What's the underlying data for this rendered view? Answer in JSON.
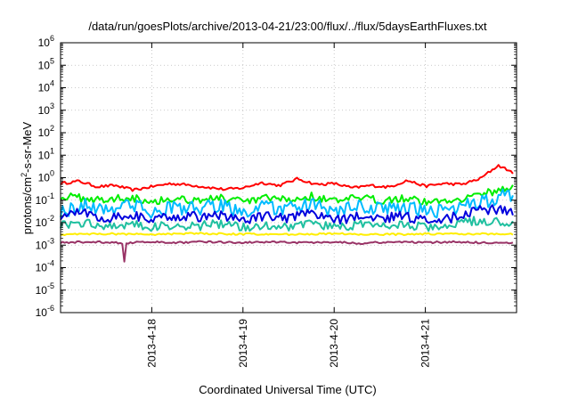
{
  "chart_data": {
    "type": "line",
    "title": "/data/run/goesPlots/archive/2013-04-21/23:00/flux/../flux/5daysEarthFluxes.txt",
    "xlabel": "Coordinated Universal Time (UTC)",
    "ylabel": "protons/cm²-s-sr-MeV",
    "ylabel_base": "protons/cm",
    "ylabel_exp": "2",
    "ylabel_rest": "-s-sr-MeV",
    "y_scale": "log",
    "ylim": [
      1e-06,
      1000000.0
    ],
    "xlim": [
      "2013-04-17 00:00",
      "2013-04-21 23:00"
    ],
    "grid": true,
    "x_ticks": [
      "2013-4-18",
      "2013-4-19",
      "2013-4-20",
      "2013-4-21"
    ],
    "y_ticks": [
      {
        "base": "10",
        "exp": "-6"
      },
      {
        "base": "10",
        "exp": "-5"
      },
      {
        "base": "10",
        "exp": "-4"
      },
      {
        "base": "10",
        "exp": "-3"
      },
      {
        "base": "10",
        "exp": "-2"
      },
      {
        "base": "10",
        "exp": "-1"
      },
      {
        "base": "10",
        "exp": "0"
      },
      {
        "base": "10",
        "exp": "1"
      },
      {
        "base": "10",
        "exp": "2"
      },
      {
        "base": "10",
        "exp": "3"
      },
      {
        "base": "10",
        "exp": "4"
      },
      {
        "base": "10",
        "exp": "5"
      },
      {
        "base": "10",
        "exp": "6"
      }
    ],
    "time_unit": "days after 2013-04-17 00:00 UTC",
    "series": [
      {
        "color": "#ff0000",
        "x": [
          0.0,
          0.2,
          0.4,
          0.6,
          0.8,
          1.0,
          1.2,
          1.4,
          1.6,
          1.8,
          2.0,
          2.2,
          2.4,
          2.6,
          2.8,
          3.0,
          3.2,
          3.4,
          3.6,
          3.8,
          4.0,
          4.2,
          4.4,
          4.6,
          4.8,
          4.96
        ],
        "y": [
          0.55,
          0.7,
          0.4,
          0.45,
          0.28,
          0.4,
          0.55,
          0.48,
          0.38,
          0.3,
          0.35,
          0.6,
          0.45,
          0.9,
          0.5,
          0.55,
          0.35,
          0.45,
          0.38,
          0.75,
          0.42,
          0.55,
          0.5,
          0.9,
          3.5,
          1.7
        ]
      },
      {
        "color": "#00ee00",
        "x": [
          0.0,
          0.25,
          0.5,
          0.75,
          1.0,
          1.25,
          1.5,
          1.75,
          2.0,
          2.25,
          2.5,
          2.75,
          3.0,
          3.25,
          3.5,
          3.75,
          4.0,
          4.25,
          4.5,
          4.75,
          4.96
        ],
        "y": [
          0.15,
          0.12,
          0.1,
          0.14,
          0.09,
          0.12,
          0.1,
          0.13,
          0.08,
          0.12,
          0.1,
          0.15,
          0.09,
          0.12,
          0.1,
          0.13,
          0.08,
          0.1,
          0.14,
          0.25,
          0.4
        ]
      },
      {
        "color": "#00bbff",
        "x": [
          0.0,
          0.25,
          0.5,
          0.75,
          1.0,
          1.25,
          1.5,
          1.75,
          2.0,
          2.25,
          2.5,
          2.75,
          3.0,
          3.25,
          3.5,
          3.75,
          4.0,
          4.25,
          4.5,
          4.75,
          4.96
        ],
        "y": [
          0.03,
          0.06,
          0.04,
          0.07,
          0.03,
          0.05,
          0.04,
          0.06,
          0.03,
          0.05,
          0.04,
          0.06,
          0.03,
          0.05,
          0.04,
          0.05,
          0.03,
          0.04,
          0.06,
          0.12,
          0.2
        ]
      },
      {
        "color": "#0000dd",
        "x": [
          0.0,
          0.25,
          0.5,
          0.75,
          1.0,
          1.25,
          1.5,
          1.75,
          2.0,
          2.25,
          2.5,
          2.75,
          3.0,
          3.25,
          3.5,
          3.75,
          4.0,
          4.25,
          4.5,
          4.75,
          4.96
        ],
        "y": [
          0.02,
          0.03,
          0.015,
          0.025,
          0.012,
          0.02,
          0.018,
          0.022,
          0.012,
          0.02,
          0.015,
          0.025,
          0.013,
          0.018,
          0.015,
          0.02,
          0.012,
          0.015,
          0.03,
          0.04,
          0.035
        ]
      },
      {
        "color": "#20c0a0",
        "x": [
          0.0,
          0.25,
          0.5,
          0.75,
          1.0,
          1.25,
          1.5,
          1.75,
          2.0,
          2.25,
          2.5,
          2.75,
          3.0,
          3.25,
          3.5,
          3.75,
          4.0,
          4.25,
          4.5,
          4.75,
          4.96
        ],
        "y": [
          0.008,
          0.01,
          0.007,
          0.009,
          0.006,
          0.008,
          0.007,
          0.009,
          0.006,
          0.008,
          0.007,
          0.009,
          0.006,
          0.008,
          0.007,
          0.008,
          0.006,
          0.007,
          0.012,
          0.011,
          0.01
        ]
      },
      {
        "color": "#ffee00",
        "x": [
          0.0,
          0.5,
          1.0,
          1.5,
          2.0,
          2.5,
          3.0,
          3.5,
          4.0,
          4.5,
          4.96
        ],
        "y": [
          0.003,
          0.0032,
          0.003,
          0.0033,
          0.0031,
          0.003,
          0.0032,
          0.003,
          0.0031,
          0.0032,
          0.003
        ]
      },
      {
        "color": "#993366",
        "x": [
          0.0,
          0.3,
          0.6,
          0.68,
          0.7,
          0.72,
          0.8,
          1.0,
          1.3,
          1.6,
          2.0,
          2.3,
          2.6,
          3.0,
          3.3,
          3.6,
          4.0,
          4.3,
          4.6,
          4.96
        ],
        "y": [
          0.0013,
          0.0014,
          0.0013,
          0.0012,
          0.00017,
          0.0012,
          0.0013,
          0.0014,
          0.0013,
          0.0014,
          0.0013,
          0.0014,
          0.0013,
          0.0014,
          0.0012,
          0.0014,
          0.0013,
          0.0014,
          0.0013,
          0.0012
        ]
      }
    ]
  }
}
